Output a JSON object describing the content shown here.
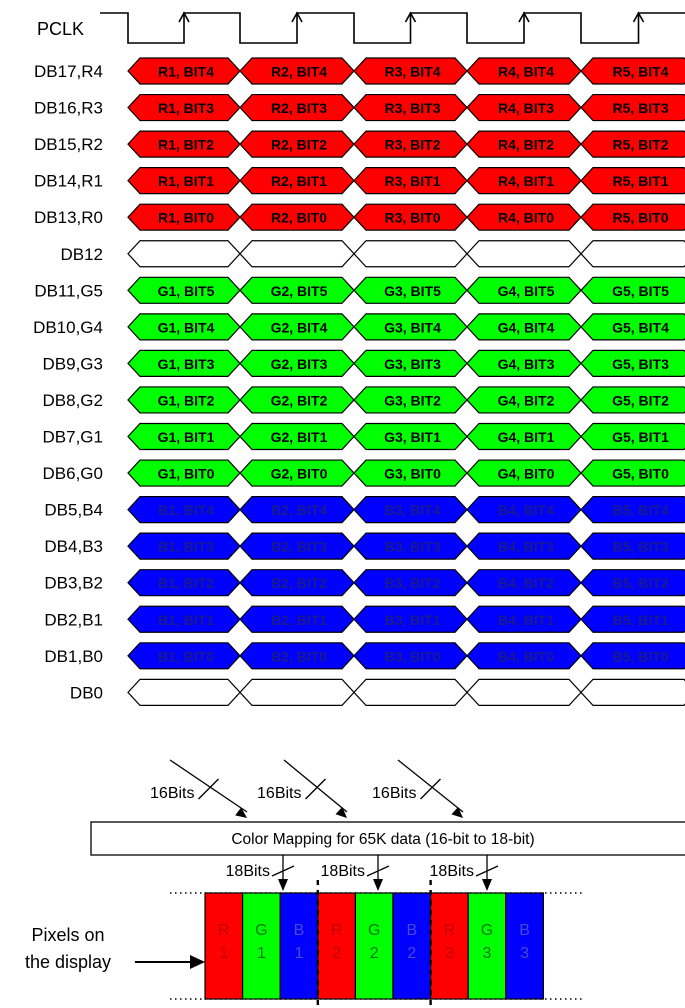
{
  "clock_label": "PCLK",
  "signal_rows": [
    {
      "label": "DB17,R4",
      "color": "red",
      "cells": [
        "R1, BIT4",
        "R2, BIT4",
        "R3, BIT4",
        "R4, BIT4",
        "R5, BIT4"
      ]
    },
    {
      "label": "DB16,R3",
      "color": "red",
      "cells": [
        "R1, BIT3",
        "R2, BIT3",
        "R3, BIT3",
        "R4, BIT3",
        "R5, BIT3"
      ]
    },
    {
      "label": "DB15,R2",
      "color": "red",
      "cells": [
        "R1, BIT2",
        "R2, BIT2",
        "R3, BIT2",
        "R4, BIT2",
        "R5, BIT2"
      ]
    },
    {
      "label": "DB14,R1",
      "color": "red",
      "cells": [
        "R1, BIT1",
        "R2, BIT1",
        "R3, BIT1",
        "R4, BIT1",
        "R5, BIT1"
      ]
    },
    {
      "label": "DB13,R0",
      "color": "red",
      "cells": [
        "R1, BIT0",
        "R2, BIT0",
        "R3, BIT0",
        "R4, BIT0",
        "R5, BIT0"
      ]
    },
    {
      "label": "DB12",
      "color": "white",
      "cells": [
        "",
        "",
        "",
        "",
        ""
      ]
    },
    {
      "label": "DB11,G5",
      "color": "green",
      "cells": [
        "G1, BIT5",
        "G2, BIT5",
        "G3, BIT5",
        "G4, BIT5",
        "G5, BIT5"
      ]
    },
    {
      "label": "DB10,G4",
      "color": "green",
      "cells": [
        "G1, BIT4",
        "G2, BIT4",
        "G3, BIT4",
        "G4, BIT4",
        "G5, BIT4"
      ]
    },
    {
      "label": "DB9,G3",
      "color": "green",
      "cells": [
        "G1, BIT3",
        "G2, BIT3",
        "G3, BIT3",
        "G4, BIT3",
        "G5, BIT3"
      ]
    },
    {
      "label": "DB8,G2",
      "color": "green",
      "cells": [
        "G1, BIT2",
        "G2, BIT2",
        "G3, BIT2",
        "G4, BIT2",
        "G5, BIT2"
      ]
    },
    {
      "label": "DB7,G1",
      "color": "green",
      "cells": [
        "G1, BIT1",
        "G2, BIT1",
        "G3, BIT1",
        "G4, BIT1",
        "G5, BIT1"
      ]
    },
    {
      "label": "DB6,G0",
      "color": "green",
      "cells": [
        "G1, BIT0",
        "G2, BIT0",
        "G3, BIT0",
        "G4, BIT0",
        "G5, BIT0"
      ]
    },
    {
      "label": "DB5,B4",
      "color": "blue",
      "cells": [
        "B1, BIT4",
        "B2, BIT4",
        "B3, BIT4",
        "B4, BIT4",
        "B5, BIT4"
      ]
    },
    {
      "label": "DB4,B3",
      "color": "blue",
      "cells": [
        "B1, BIT3",
        "B2, BIT3",
        "B3, BIT3",
        "B4, BIT3",
        "B5, BIT3"
      ]
    },
    {
      "label": "DB3,B2",
      "color": "blue",
      "cells": [
        "B1, BIT2",
        "B2, BIT2",
        "B3, BIT2",
        "B4, BIT2",
        "B5, BIT2"
      ]
    },
    {
      "label": "DB2,B1",
      "color": "blue",
      "cells": [
        "B1, BIT1",
        "B2, BIT1",
        "B3, BIT1",
        "B4, BIT1",
        "B5, BIT1"
      ]
    },
    {
      "label": "DB1,B0",
      "color": "blue",
      "cells": [
        "B1, BIT0",
        "B2, BIT0",
        "B3, BIT0",
        "B4, BIT0",
        "B5, BIT0"
      ]
    },
    {
      "label": "DB0",
      "color": "white",
      "cells": [
        "",
        "",
        "",
        "",
        ""
      ]
    }
  ],
  "bus_width_labels": [
    "16Bits",
    "16Bits",
    "16Bits"
  ],
  "mapping_box_label": "Color Mapping for 65K data (16-bit to 18-bit)",
  "output_width_labels": [
    "18Bits",
    "18Bits",
    "18Bits"
  ],
  "pixels_caption_line1": "Pixels on",
  "pixels_caption_line2": "the display",
  "pixel_cells": [
    {
      "letter": "R",
      "number": "1",
      "color": "red"
    },
    {
      "letter": "G",
      "number": "1",
      "color": "green"
    },
    {
      "letter": "B",
      "number": "1",
      "color": "blue"
    },
    {
      "letter": "R",
      "number": "2",
      "color": "red"
    },
    {
      "letter": "G",
      "number": "2",
      "color": "green"
    },
    {
      "letter": "B",
      "number": "2",
      "color": "blue"
    },
    {
      "letter": "R",
      "number": "3",
      "color": "red"
    },
    {
      "letter": "G",
      "number": "3",
      "color": "green"
    },
    {
      "letter": "B",
      "number": "3",
      "color": "blue"
    }
  ],
  "colors": {
    "red": "#ff0000",
    "green": "#00ff00",
    "blue": "#0000ff",
    "text_on_red": "#000000",
    "text_on_green": "#000000",
    "text_on_blue": "#1a1a8c",
    "pixel_text_red": "#c00000",
    "pixel_text_green": "#007a00",
    "pixel_text_blue": "#4a4ad0"
  }
}
